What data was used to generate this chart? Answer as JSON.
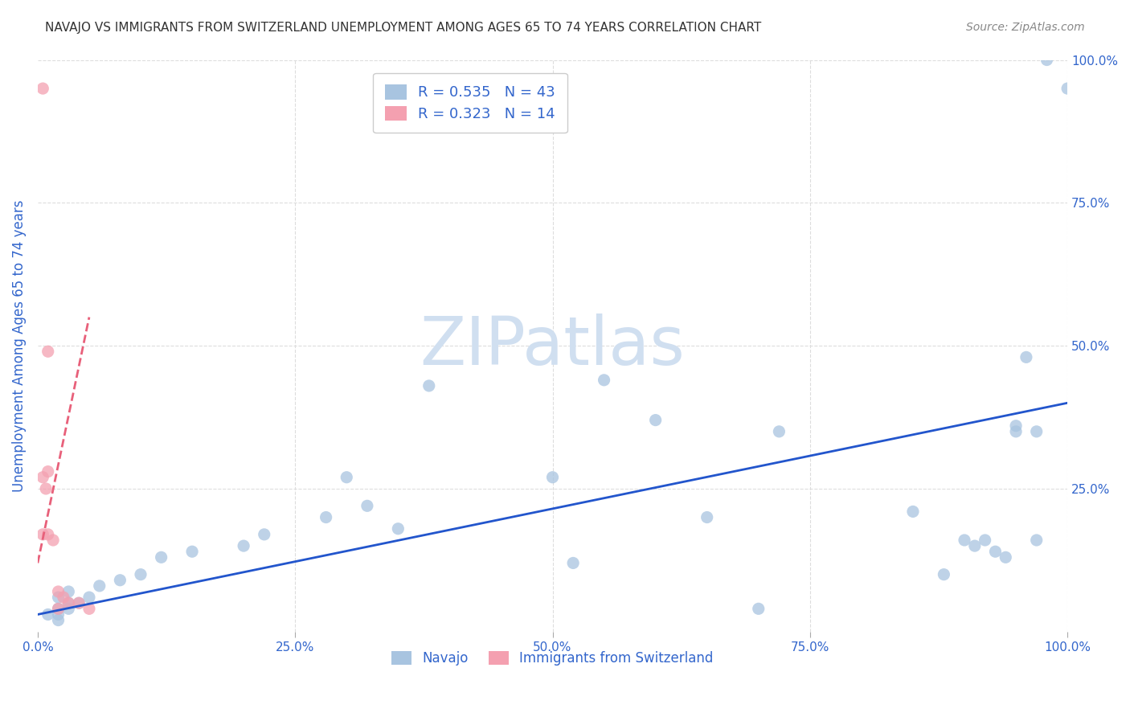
{
  "title": "NAVAJO VS IMMIGRANTS FROM SWITZERLAND UNEMPLOYMENT AMONG AGES 65 TO 74 YEARS CORRELATION CHART",
  "source": "Source: ZipAtlas.com",
  "xlabel": "",
  "ylabel": "Unemployment Among Ages 65 to 74 years",
  "watermark": "ZIPatlas",
  "legend_navajo_R": "R = 0.535",
  "legend_navajo_N": "N = 43",
  "legend_swiss_R": "R = 0.323",
  "legend_swiss_N": "N = 14",
  "navajo_label": "Navajo",
  "swiss_label": "Immigrants from Switzerland",
  "dot_color_navajo": "#a8c4e0",
  "dot_color_swiss": "#f4a0b0",
  "line_color_navajo": "#2255cc",
  "line_color_swiss": "#e8607a",
  "legend_box_navajo": "#a8c4e0",
  "legend_box_swiss": "#f4a0b0",
  "legend_text_color": "#3366cc",
  "axis_label_color": "#3366cc",
  "title_color": "#333333",
  "background_color": "#ffffff",
  "grid_color": "#dddddd",
  "watermark_color": "#d0dff0",
  "xlim": [
    0.0,
    1.0
  ],
  "ylim": [
    0.0,
    1.0
  ],
  "xtick_labels": [
    "0.0%",
    "25.0%",
    "50.0%",
    "75.0%",
    "100.0%"
  ],
  "xtick_positions": [
    0.0,
    0.25,
    0.5,
    0.75,
    1.0
  ],
  "ytick_labels": [
    "25.0%",
    "50.0%",
    "75.0%",
    "100.0%"
  ],
  "ytick_positions": [
    0.25,
    0.5,
    0.75,
    1.0
  ],
  "navajo_x": [
    0.02,
    0.03,
    0.01,
    0.02,
    0.03,
    0.04,
    0.03,
    0.02,
    0.05,
    0.06,
    0.02,
    0.08,
    0.1,
    0.12,
    0.15,
    0.2,
    0.22,
    0.28,
    0.3,
    0.32,
    0.35,
    0.38,
    0.5,
    0.52,
    0.55,
    0.6,
    0.65,
    0.7,
    0.72,
    0.85,
    0.88,
    0.9,
    0.91,
    0.92,
    0.93,
    0.94,
    0.95,
    0.95,
    0.96,
    0.97,
    0.97,
    0.98,
    1.0
  ],
  "navajo_y": [
    0.04,
    0.05,
    0.03,
    0.06,
    0.07,
    0.05,
    0.04,
    0.03,
    0.06,
    0.08,
    0.02,
    0.09,
    0.1,
    0.13,
    0.14,
    0.15,
    0.17,
    0.2,
    0.27,
    0.22,
    0.18,
    0.43,
    0.27,
    0.12,
    0.44,
    0.37,
    0.2,
    0.04,
    0.35,
    0.21,
    0.1,
    0.16,
    0.15,
    0.16,
    0.14,
    0.13,
    0.36,
    0.35,
    0.48,
    0.35,
    0.16,
    1.0,
    0.95
  ],
  "swiss_x": [
    0.005,
    0.005,
    0.005,
    0.008,
    0.01,
    0.01,
    0.01,
    0.015,
    0.02,
    0.02,
    0.025,
    0.03,
    0.04,
    0.05
  ],
  "swiss_y": [
    0.95,
    0.27,
    0.17,
    0.25,
    0.49,
    0.28,
    0.17,
    0.16,
    0.07,
    0.04,
    0.06,
    0.05,
    0.05,
    0.04
  ],
  "navajo_line_x": [
    0.0,
    1.0
  ],
  "navajo_line_y": [
    0.03,
    0.4
  ],
  "swiss_line_x": [
    0.0,
    0.05
  ],
  "swiss_line_y": [
    0.12,
    0.55
  ]
}
